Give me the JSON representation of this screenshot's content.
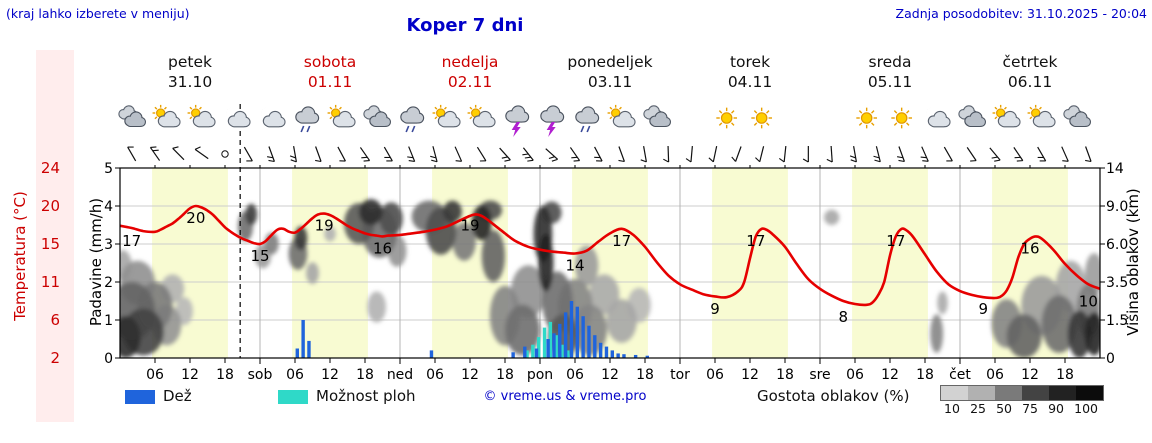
{
  "header": {
    "hint": "(kraj lahko izberete v meniju)",
    "title": "Koper 7 dni",
    "updated": "Zadnja posodobitev: 31.10.2025 - 20:04"
  },
  "axes": {
    "temp_label": "Temperatura (°C)",
    "precip_label": "Padavine (mm/h)",
    "cloud_label": "Višina oblakov (km)",
    "temp_ticks": [
      "24",
      "20",
      "15",
      "11",
      "6",
      "2"
    ],
    "precip_ticks": [
      "5",
      "4",
      "3",
      "2",
      "1",
      "0"
    ],
    "cloud_ticks": [
      "14",
      "9.0",
      "6.0",
      "3.5",
      "1.5",
      "0"
    ]
  },
  "legend": {
    "rain": "Dež",
    "showers": "Možnost ploh",
    "copyright": "© vreme.us & vreme.pro",
    "cloud_density": "Gostota oblakov (%)",
    "density_ticks": [
      "10",
      "25",
      "50",
      "75",
      "90",
      "100"
    ],
    "density_colors": [
      "#d2d2d2",
      "#b1b1b1",
      "#7a7a7a",
      "#434343",
      "#222222",
      "#0c0c0c"
    ]
  },
  "colors": {
    "accent_blue": "#0000c8",
    "red": "#cc0000",
    "temp_line": "#e60000",
    "rain": "#1f64dc",
    "showers": "#2fd9c8",
    "daylight_band": "#f8fbd2"
  },
  "chart_data": {
    "type": "meteogram",
    "hours_span": 168,
    "days": [
      {
        "name": "petek",
        "date": "31.10",
        "red": false
      },
      {
        "name": "sobota",
        "date": "01.11",
        "red": true
      },
      {
        "name": "nedelja",
        "date": "02.11",
        "red": true
      },
      {
        "name": "ponedeljek",
        "date": "03.11",
        "red": false
      },
      {
        "name": "torek",
        "date": "04.11",
        "red": false
      },
      {
        "name": "sreda",
        "date": "05.11",
        "red": false
      },
      {
        "name": "četrtek",
        "date": "06.11",
        "red": false
      }
    ],
    "hour_ticks": [
      "06",
      "12",
      "18"
    ],
    "day_abbrevs": [
      "sob",
      "ned",
      "pon",
      "tor",
      "sre",
      "čet"
    ],
    "now_hour": 20.6,
    "precip_range": [
      0,
      5
    ],
    "temp_scale_anchors": [
      2,
      6,
      11,
      15,
      20,
      24
    ],
    "cloud_scale_anchors": [
      0,
      1.5,
      3.5,
      6,
      9,
      14
    ],
    "day_bands": [
      [
        5.5,
        18.5
      ],
      [
        29.5,
        42.5
      ],
      [
        53.5,
        66.5
      ],
      [
        77.5,
        90.5
      ],
      [
        101.5,
        114.5
      ],
      [
        125.5,
        138.5
      ],
      [
        149.5,
        162.5
      ]
    ],
    "temperature": {
      "points": [
        [
          0,
          17.4
        ],
        [
          2,
          17.1
        ],
        [
          4,
          16.7
        ],
        [
          6,
          16.6
        ],
        [
          7,
          16.9
        ],
        [
          8,
          17.3
        ],
        [
          9,
          17.7
        ],
        [
          10,
          18.3
        ],
        [
          11,
          19
        ],
        [
          12,
          19.7
        ],
        [
          13,
          20
        ],
        [
          14,
          19.8
        ],
        [
          15,
          19.4
        ],
        [
          16,
          18.8
        ],
        [
          17,
          18
        ],
        [
          18,
          17.2
        ],
        [
          19,
          16.6
        ],
        [
          20,
          16.1
        ],
        [
          21,
          15.7
        ],
        [
          22,
          15.4
        ],
        [
          23,
          15.1
        ],
        [
          24,
          15
        ],
        [
          25,
          15.4
        ],
        [
          26,
          16.2
        ],
        [
          27,
          16.9
        ],
        [
          28,
          17
        ],
        [
          29,
          16.6
        ],
        [
          30,
          16.5
        ],
        [
          31,
          17
        ],
        [
          32,
          17.7
        ],
        [
          33,
          18.4
        ],
        [
          34,
          18.9
        ],
        [
          35,
          19
        ],
        [
          36,
          18.8
        ],
        [
          37,
          18.4
        ],
        [
          38,
          17.9
        ],
        [
          39,
          17.4
        ],
        [
          40,
          17
        ],
        [
          41,
          16.7
        ],
        [
          42,
          16.4
        ],
        [
          43,
          16.2
        ],
        [
          44,
          16.1
        ],
        [
          45,
          16
        ],
        [
          46,
          16.1
        ],
        [
          48,
          16.2
        ],
        [
          50,
          16.4
        ],
        [
          52,
          16.6
        ],
        [
          54,
          16.9
        ],
        [
          56,
          17.3
        ],
        [
          58,
          18
        ],
        [
          60,
          18.7
        ],
        [
          61,
          18.9
        ],
        [
          62,
          18.7
        ],
        [
          63,
          18.2
        ],
        [
          64,
          17.6
        ],
        [
          65,
          17
        ],
        [
          66,
          16.4
        ],
        [
          67,
          15.8
        ],
        [
          68,
          15.3
        ],
        [
          70,
          14.7
        ],
        [
          72,
          14.4
        ],
        [
          74,
          14.2
        ],
        [
          76,
          14.1
        ],
        [
          78,
          14
        ],
        [
          80,
          14.3
        ],
        [
          82,
          15.3
        ],
        [
          84,
          16.4
        ],
        [
          86,
          17
        ],
        [
          88,
          16.2
        ],
        [
          90,
          14.7
        ],
        [
          92,
          13.1
        ],
        [
          94,
          11.7
        ],
        [
          96,
          10.7
        ],
        [
          98,
          10
        ],
        [
          100,
          9.4
        ],
        [
          102,
          9.1
        ],
        [
          104,
          9
        ],
        [
          106,
          9.8
        ],
        [
          107,
          11
        ],
        [
          108,
          13.5
        ],
        [
          109,
          16
        ],
        [
          110,
          17
        ],
        [
          111,
          16.8
        ],
        [
          112,
          16.2
        ],
        [
          114,
          14.7
        ],
        [
          116,
          12.9
        ],
        [
          118,
          11.3
        ],
        [
          120,
          10.1
        ],
        [
          122,
          9.2
        ],
        [
          124,
          8.5
        ],
        [
          126,
          8.1
        ],
        [
          128,
          8
        ],
        [
          129,
          8.3
        ],
        [
          130,
          9.3
        ],
        [
          131,
          11
        ],
        [
          132,
          13.8
        ],
        [
          133,
          16
        ],
        [
          134,
          17
        ],
        [
          135,
          16.7
        ],
        [
          136,
          15.9
        ],
        [
          138,
          13.9
        ],
        [
          140,
          12.1
        ],
        [
          142,
          10.7
        ],
        [
          144,
          9.8
        ],
        [
          146,
          9.3
        ],
        [
          148,
          9
        ],
        [
          150,
          8.9
        ],
        [
          151,
          9.1
        ],
        [
          152,
          9.9
        ],
        [
          153,
          11.5
        ],
        [
          154,
          13.6
        ],
        [
          155,
          15
        ],
        [
          156,
          15.7
        ],
        [
          157,
          16
        ],
        [
          158,
          15.7
        ],
        [
          160,
          14.4
        ],
        [
          162,
          12.9
        ],
        [
          164,
          11.7
        ],
        [
          166,
          10.7
        ],
        [
          168,
          10.1
        ]
      ],
      "labels": [
        [
          2,
          17
        ],
        [
          13,
          20
        ],
        [
          24,
          15
        ],
        [
          35,
          19
        ],
        [
          45,
          16
        ],
        [
          60,
          19
        ],
        [
          78,
          14
        ],
        [
          86,
          17
        ],
        [
          102,
          9
        ],
        [
          109,
          17
        ],
        [
          124,
          8
        ],
        [
          133,
          17
        ],
        [
          148,
          9
        ],
        [
          156,
          16
        ],
        [
          166,
          10
        ]
      ]
    },
    "rain": [
      [
        30,
        0.25
      ],
      [
        31,
        1.0
      ],
      [
        32,
        0.45
      ],
      [
        53,
        0.2
      ],
      [
        67,
        0.15
      ],
      [
        69,
        0.3
      ],
      [
        71,
        0.25
      ],
      [
        73,
        0.5
      ],
      [
        74,
        0.65
      ],
      [
        75,
        0.9
      ],
      [
        76,
        1.2
      ],
      [
        77,
        1.5
      ],
      [
        78,
        1.35
      ],
      [
        79,
        1.1
      ],
      [
        80,
        0.85
      ],
      [
        81,
        0.6
      ],
      [
        82,
        0.4
      ],
      [
        83,
        0.3
      ],
      [
        84,
        0.2
      ],
      [
        85,
        0.12
      ],
      [
        86,
        0.1
      ],
      [
        88,
        0.08
      ],
      [
        90,
        0.06
      ]
    ],
    "showers": [
      [
        70,
        0.2
      ],
      [
        71,
        0.35
      ],
      [
        72,
        0.55
      ],
      [
        73,
        0.8
      ],
      [
        74,
        0.95
      ],
      [
        75,
        0.6
      ],
      [
        76,
        0.35
      ],
      [
        77,
        0.2
      ]
    ],
    "clouds": [
      [
        1,
        0.8,
        2.5,
        0.9,
        85
      ],
      [
        2,
        2.1,
        4,
        1.4,
        60
      ],
      [
        4,
        1.1,
        3.5,
        1,
        75
      ],
      [
        3,
        3.6,
        3,
        1.3,
        40
      ],
      [
        6,
        2.3,
        3,
        1.2,
        50
      ],
      [
        8,
        1.4,
        2.5,
        0.9,
        38
      ],
      [
        9,
        3.2,
        2,
        0.8,
        25
      ],
      [
        0.5,
        4.6,
        1.5,
        1,
        30
      ],
      [
        11,
        2,
        1.5,
        0.7,
        22
      ],
      [
        21.5,
        7.4,
        1.3,
        1.2,
        55
      ],
      [
        22.5,
        8.4,
        1,
        0.9,
        78
      ],
      [
        24.5,
        5.2,
        1.4,
        0.8,
        35
      ],
      [
        26,
        6.1,
        1.2,
        0.8,
        48
      ],
      [
        30.5,
        5.4,
        1.6,
        1.1,
        55
      ],
      [
        31,
        6.5,
        1.1,
        0.9,
        80
      ],
      [
        33,
        4.1,
        1.1,
        0.7,
        30
      ],
      [
        36,
        6.8,
        1,
        0.6,
        25
      ],
      [
        41,
        7.7,
        2.6,
        1.7,
        65
      ],
      [
        43,
        8.7,
        2,
        1.2,
        85
      ],
      [
        44.5,
        7,
        3,
        1.9,
        55
      ],
      [
        46.5,
        8.1,
        2,
        1.4,
        70
      ],
      [
        47.5,
        5.6,
        1.6,
        1.1,
        38
      ],
      [
        44,
        2.2,
        1.6,
        0.8,
        25
      ],
      [
        53,
        8.3,
        3,
        1.4,
        55
      ],
      [
        55,
        7.1,
        2.6,
        1.8,
        70
      ],
      [
        57,
        8.7,
        1.6,
        1,
        80
      ],
      [
        59,
        6.3,
        2,
        1.4,
        50
      ],
      [
        62,
        7.7,
        1.7,
        1.4,
        88
      ],
      [
        64,
        5.3,
        2,
        1.8,
        60
      ],
      [
        63.5,
        8.8,
        2,
        0.9,
        70
      ],
      [
        66,
        1.9,
        2.6,
        1.4,
        45
      ],
      [
        69,
        1.2,
        3,
        1.1,
        55
      ],
      [
        70,
        3.1,
        3,
        1.5,
        40
      ],
      [
        72.5,
        6.9,
        1.6,
        2.1,
        85
      ],
      [
        73,
        4.9,
        1.3,
        1.9,
        90
      ],
      [
        74,
        8.6,
        1.7,
        1,
        70
      ],
      [
        75,
        2.6,
        2.6,
        1.6,
        55
      ],
      [
        76,
        0.9,
        2.6,
        0.9,
        65
      ],
      [
        78,
        2.3,
        3,
        1.4,
        45
      ],
      [
        80,
        4.6,
        2,
        1.3,
        35
      ],
      [
        80.5,
        1.2,
        3,
        1.1,
        45
      ],
      [
        83,
        2.9,
        2.6,
        1.1,
        28
      ],
      [
        86,
        1.6,
        2.6,
        1,
        30
      ],
      [
        89,
        2.3,
        2,
        0.9,
        22
      ],
      [
        122,
        8.1,
        1.3,
        0.6,
        30
      ],
      [
        140,
        1,
        1.1,
        0.8,
        45
      ],
      [
        141,
        2.4,
        0.9,
        0.6,
        28
      ],
      [
        152,
        1.5,
        2.6,
        1.1,
        45
      ],
      [
        155,
        0.9,
        3,
        0.9,
        60
      ],
      [
        158,
        2.4,
        3.5,
        1.5,
        35
      ],
      [
        161,
        1.5,
        3,
        1.3,
        55
      ],
      [
        163,
        3.4,
        2.6,
        1.5,
        30
      ],
      [
        164.5,
        1,
        2,
        1,
        80
      ],
      [
        166,
        2.1,
        2,
        1.3,
        50
      ],
      [
        167,
        4.1,
        1.6,
        1.3,
        35
      ],
      [
        167,
        1,
        1.6,
        0.9,
        90
      ]
    ],
    "icons": [
      [
        2,
        "cloud"
      ],
      [
        8,
        "suncloud"
      ],
      [
        14,
        "suncloud"
      ],
      [
        20,
        "mooncloud"
      ],
      [
        26,
        "mooncloud"
      ],
      [
        32,
        "rain"
      ],
      [
        38,
        "suncloud"
      ],
      [
        44,
        "cloud"
      ],
      [
        50,
        "rain"
      ],
      [
        56,
        "suncloud"
      ],
      [
        62,
        "suncloud"
      ],
      [
        68,
        "storm"
      ],
      [
        74,
        "storm"
      ],
      [
        80,
        "rain"
      ],
      [
        86,
        "suncloud"
      ],
      [
        92,
        "cloud"
      ],
      [
        98,
        "moon"
      ],
      [
        104,
        "sun"
      ],
      [
        110,
        "sun"
      ],
      [
        116,
        "moon"
      ],
      [
        122,
        "moon"
      ],
      [
        128,
        "sun"
      ],
      [
        134,
        "sun"
      ],
      [
        140,
        "mooncloud"
      ],
      [
        146,
        "cloud"
      ],
      [
        152,
        "suncloud"
      ],
      [
        158,
        "suncloud"
      ],
      [
        164,
        "cloud"
      ]
    ],
    "wind": [
      [
        2,
        240,
        1
      ],
      [
        6,
        235,
        2
      ],
      [
        10,
        225,
        1
      ],
      [
        14,
        215,
        1
      ],
      [
        18,
        0,
        -1
      ],
      [
        22,
        60,
        1
      ],
      [
        26,
        70,
        2
      ],
      [
        30,
        80,
        2
      ],
      [
        34,
        70,
        1
      ],
      [
        38,
        62,
        1
      ],
      [
        42,
        55,
        2
      ],
      [
        46,
        60,
        2
      ],
      [
        50,
        68,
        2
      ],
      [
        54,
        75,
        2
      ],
      [
        58,
        66,
        1
      ],
      [
        62,
        58,
        1
      ],
      [
        66,
        48,
        2
      ],
      [
        70,
        52,
        3
      ],
      [
        74,
        42,
        2
      ],
      [
        78,
        55,
        2
      ],
      [
        82,
        62,
        2
      ],
      [
        86,
        70,
        1
      ],
      [
        90,
        80,
        1
      ],
      [
        94,
        88,
        1
      ],
      [
        98,
        95,
        1
      ],
      [
        102,
        102,
        1
      ],
      [
        106,
        110,
        1
      ],
      [
        110,
        104,
        1
      ],
      [
        114,
        96,
        1
      ],
      [
        118,
        90,
        1
      ],
      [
        122,
        86,
        1
      ],
      [
        126,
        80,
        2
      ],
      [
        130,
        76,
        2
      ],
      [
        134,
        70,
        2
      ],
      [
        138,
        66,
        2
      ],
      [
        142,
        60,
        1
      ],
      [
        146,
        56,
        1
      ],
      [
        150,
        50,
        2
      ],
      [
        154,
        56,
        2
      ],
      [
        158,
        60,
        2
      ],
      [
        162,
        66,
        1
      ],
      [
        166,
        70,
        1
      ]
    ]
  }
}
